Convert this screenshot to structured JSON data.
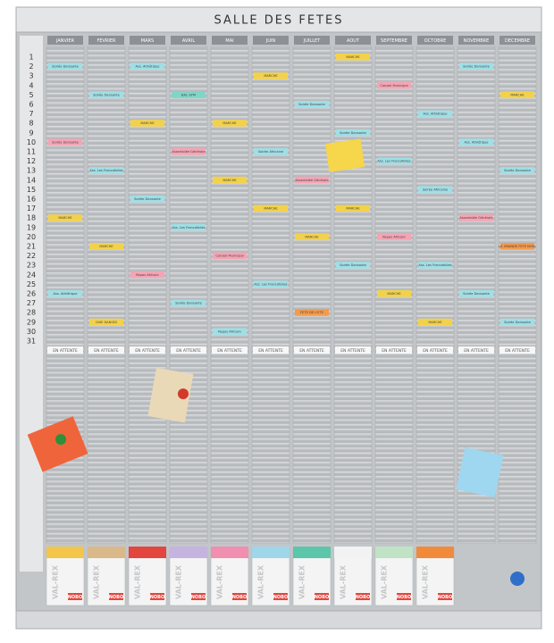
{
  "header": {
    "title": "SALLE DES FETES"
  },
  "days": [
    "1",
    "2",
    "3",
    "4",
    "5",
    "6",
    "7",
    "8",
    "9",
    "10",
    "11",
    "12",
    "13",
    "14",
    "15",
    "16",
    "17",
    "18",
    "19",
    "20",
    "21",
    "22",
    "23",
    "24",
    "25",
    "26",
    "27",
    "28",
    "29",
    "30",
    "31"
  ],
  "columns": [
    {
      "month": "JANVIER",
      "status": "EN ATTENTE",
      "cards": [
        {
          "text": "Soirée Dansante",
          "color": "#9fdfe6"
        },
        {
          "text": "Soirée Dansante",
          "color": "#f6a4b4"
        },
        {
          "text": "MARCHE",
          "color": "#f3d24a"
        },
        {
          "text": "Ass. Athlétique",
          "color": "#9fdfe6"
        }
      ]
    },
    {
      "month": "FEVRIER",
      "status": "EN ATTENTE",
      "cards": [
        {
          "text": "Soirée Dansante",
          "color": "#9fdfe6"
        },
        {
          "text": "Ass. Les Francofolies",
          "color": "#9fdfe6"
        },
        {
          "text": "MARCHE",
          "color": "#f3d24a"
        },
        {
          "text": "CINE DANSES",
          "color": "#f3d24a"
        }
      ]
    },
    {
      "month": "MARS",
      "status": "EN ATTENTE",
      "cards": [
        {
          "text": "MARCHE",
          "color": "#f3d24a"
        },
        {
          "text": "Soirée Dansante",
          "color": "#9fdfe6"
        },
        {
          "text": "Repas Africain",
          "color": "#f6a4b4"
        },
        {
          "text": "Ass. Athlétique",
          "color": "#9fdfe6"
        }
      ]
    },
    {
      "month": "AVRIL",
      "status": "EN ATTENTE",
      "cards": [
        {
          "text": "Assemblée Générale",
          "color": "#f6a4b4"
        },
        {
          "text": "Ass. Les Francofolies",
          "color": "#9fdfe6"
        },
        {
          "text": "Soirée Dansante",
          "color": "#9fdfe6"
        },
        {
          "text": "BAL GYM",
          "color": "#7fd6c6"
        }
      ]
    },
    {
      "month": "MAI",
      "status": "EN ATTENTE",
      "cards": [
        {
          "text": "MARCHE",
          "color": "#f3d24a"
        },
        {
          "text": "Conseil Municipal",
          "color": "#f6a4b4"
        },
        {
          "text": "Repas Africain",
          "color": "#9fdfe6"
        },
        {
          "text": "MARCHE",
          "color": "#f3d24a"
        }
      ]
    },
    {
      "month": "JUIN",
      "status": "EN ATTENTE",
      "cards": [
        {
          "text": "MARCHE",
          "color": "#f3d24a"
        },
        {
          "text": "Ass. Les Francofolies",
          "color": "#9fdfe6"
        },
        {
          "text": "MARCHE",
          "color": "#f3d24a"
        },
        {
          "text": "Soirée Africaine",
          "color": "#9fdfe6"
        }
      ]
    },
    {
      "month": "JUILLET",
      "status": "EN ATTENTE",
      "cards": [
        {
          "text": "MARCHE",
          "color": "#f3d24a"
        },
        {
          "text": "FETE DE L'ETE",
          "color": "#f59a4a"
        },
        {
          "text": "Soirée Dansante",
          "color": "#9fdfe6"
        },
        {
          "text": "Assemblée Générale",
          "color": "#f6a4b4"
        }
      ]
    },
    {
      "month": "AOUT",
      "status": "EN ATTENTE",
      "cards": [
        {
          "text": "Soirée Dansante",
          "color": "#9fdfe6"
        },
        {
          "text": "MARCHE",
          "color": "#f3d24a"
        },
        {
          "text": "Soirée Dansante",
          "color": "#9fdfe6"
        },
        {
          "text": "MARCHE",
          "color": "#f3d24a"
        }
      ]
    },
    {
      "month": "SEPTEMBRE",
      "status": "EN ATTENTE",
      "cards": [
        {
          "text": "MARCHE",
          "color": "#f3d24a"
        },
        {
          "text": "Conseil Municipal",
          "color": "#f6a4b4"
        },
        {
          "text": "Ass. Les Francofolies",
          "color": "#9fdfe6"
        },
        {
          "text": "Repas Africain",
          "color": "#f6a4b4"
        }
      ]
    },
    {
      "month": "OCTOBRE",
      "status": "EN ATTENTE",
      "cards": [
        {
          "text": "MARCHE",
          "color": "#f3d24a"
        },
        {
          "text": "Ass. Athlétique",
          "color": "#9fdfe6"
        },
        {
          "text": "Soirée Africaine",
          "color": "#9fdfe6"
        },
        {
          "text": "Ass. Les Francofolies",
          "color": "#9fdfe6"
        }
      ]
    },
    {
      "month": "NOVEMBRE",
      "status": "EN ATTENTE",
      "cards": [
        {
          "text": "Soirée Dansante",
          "color": "#9fdfe6"
        },
        {
          "text": "Ass. Athlétique",
          "color": "#9fdfe6"
        },
        {
          "text": "Assemblée Générale",
          "color": "#f6a4b4"
        },
        {
          "text": "Soirée Dansante",
          "color": "#9fdfe6"
        }
      ]
    },
    {
      "month": "DECEMBRE",
      "status": "EN ATTENTE",
      "cards": [
        {
          "text": "MARCHE",
          "color": "#f3d24a"
        },
        {
          "text": "Soirée Dansante",
          "color": "#9fdfe6"
        },
        {
          "text": "LA GRANDE FETE NOEL",
          "color": "#f59a4a"
        },
        {
          "text": "Soirée Dansante",
          "color": "#9fdfe6"
        }
      ]
    }
  ],
  "boxes": {
    "brand": "VAL-REX",
    "logo": "NOBO",
    "colors": [
      "#f3c64a",
      "#d9b98a",
      "#e2463e",
      "#c6b4e0",
      "#f08fb0",
      "#9fd6ea",
      "#5cc6aa",
      "#f2f2f2",
      "#bfe3c4",
      "#f28a3c"
    ]
  }
}
